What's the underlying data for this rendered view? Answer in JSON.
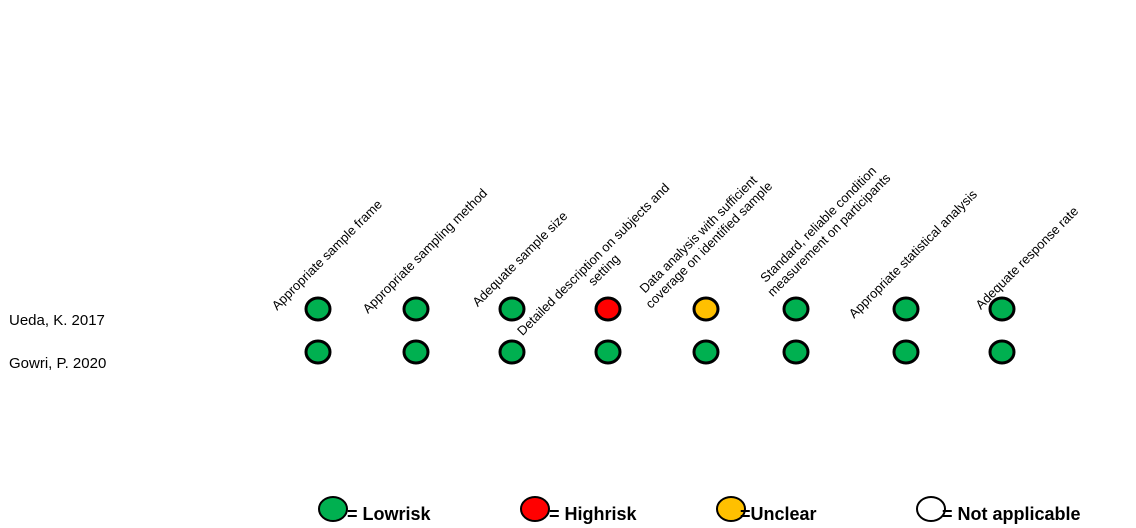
{
  "colors": {
    "low": "#00b050",
    "high": "#ff0000",
    "unclear": "#ffc000",
    "na": "#ffffff",
    "outline": "#000000"
  },
  "columns": [
    [
      "Appropriate sample frame"
    ],
    [
      "Appropriate sampling method"
    ],
    [
      "Adequate sample size"
    ],
    [
      "Detailed description on subjects and",
      "setting"
    ],
    [
      "Data analysis with sufficient",
      "coverage on identified sample"
    ],
    [
      "Standard, reliable condition",
      "measurement on participants"
    ],
    [
      "Appropriate statistical analysis"
    ],
    [
      "Adequate response rate"
    ]
  ],
  "studies": [
    {
      "name": "Ueda, K. 2017",
      "ratings": [
        "low",
        "low",
        "low",
        "high",
        "unclear",
        "low",
        "low",
        "low"
      ]
    },
    {
      "name": "Gowri, P. 2020",
      "ratings": [
        "low",
        "low",
        "low",
        "low",
        "low",
        "low",
        "low",
        "low"
      ]
    }
  ],
  "legend": [
    {
      "rating": "low",
      "label": "= Lowrisk"
    },
    {
      "rating": "high",
      "label": "= Highrisk"
    },
    {
      "rating": "unclear",
      "label": "=Unclear"
    },
    {
      "rating": "na",
      "label": "= Not applicable"
    }
  ]
}
